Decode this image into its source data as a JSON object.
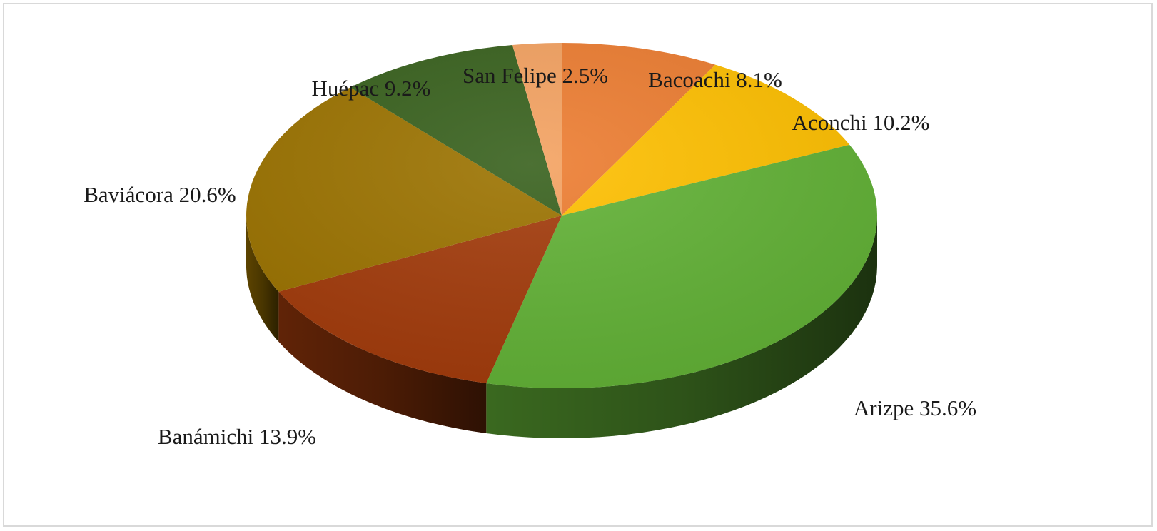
{
  "chart_data": {
    "type": "pie",
    "title": "",
    "three_d": true,
    "slices": [
      {
        "name": "Bacoachi",
        "value": 8.1,
        "label": "Bacoachi 8.1%",
        "color": "#ed7d31"
      },
      {
        "name": "Aconchi",
        "value": 10.2,
        "label": "Aconchi 10.2%",
        "color": "#ffc000"
      },
      {
        "name": "Arizpe",
        "value": 35.6,
        "label": "Arizpe 35.6%",
        "color": "#62b236"
      },
      {
        "name": "Banámichi",
        "value": 13.9,
        "label": "Banámichi 13.9%",
        "color": "#a33b0b"
      },
      {
        "name": "Baviácora",
        "value": 20.6,
        "label": "Baviácora 20.6%",
        "color": "#9c7300"
      },
      {
        "name": "Huépac",
        "value": 9.2,
        "label": "Huépac 9.2%",
        "color": "#38611d"
      },
      {
        "name": "San Felipe",
        "value": 2.5,
        "label": "San Felipe  2.5%",
        "color": "#f4a261"
      }
    ]
  }
}
